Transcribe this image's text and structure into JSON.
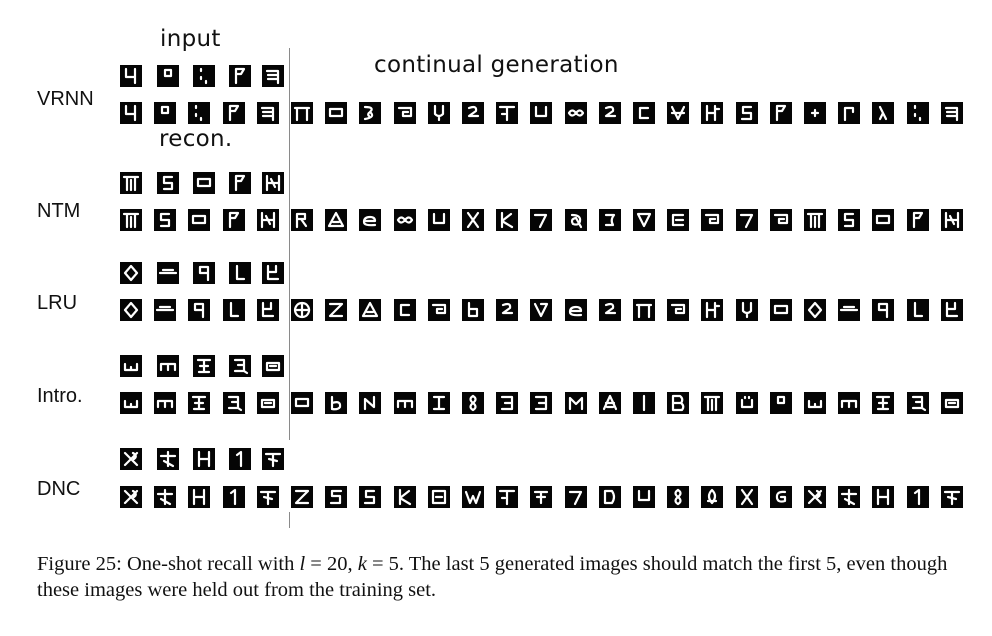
{
  "headers": {
    "input": "input",
    "recon": "recon.",
    "continual": "continual generation"
  },
  "rows": [
    {
      "label": "VRNN",
      "input": [
        "glyph-4",
        "glyph-o",
        "glyph-colon",
        "glyph-p-flag",
        "glyph-a-box"
      ],
      "output": [
        "glyph-4",
        "glyph-o",
        "glyph-colon",
        "glyph-p-flag",
        "glyph-a-box",
        "glyph-pi",
        "glyph-cup",
        "glyph-3-curl",
        "glyph-box-hook",
        "glyph-y",
        "glyph-hook-2",
        "glyph-t-bar",
        "glyph-u",
        "glyph-infinity",
        "glyph-hook-2",
        "glyph-c",
        "glyph-w-star",
        "glyph-h-tree",
        "glyph-s-flag",
        "glyph-p-flag",
        "glyph-star",
        "glyph-r",
        "glyph-lambda",
        "glyph-colon",
        "glyph-a-box"
      ]
    },
    {
      "label": "NTM",
      "input": [
        "glyph-pi-bar",
        "glyph-s-box",
        "glyph-cup",
        "glyph-p-flag",
        "glyph-x-tree"
      ],
      "output": [
        "glyph-pi-bar",
        "glyph-s-box",
        "glyph-cup",
        "glyph-p-flag",
        "glyph-x-tree",
        "glyph-r-box",
        "glyph-delta",
        "glyph-e-low",
        "glyph-infinity",
        "glyph-u",
        "glyph-x-tall",
        "glyph-k-curl",
        "glyph-7",
        "glyph-q-loop",
        "glyph-s-hook",
        "glyph-tri-box",
        "glyph-c-box",
        "glyph-box-hook",
        "glyph-7",
        "glyph-box-hook",
        "glyph-pi-bar",
        "glyph-s-box",
        "glyph-cup",
        "glyph-p-flag",
        "glyph-x-tree"
      ]
    },
    {
      "label": "LRU",
      "input": [
        "glyph-diamond",
        "glyph-dash",
        "glyph-9",
        "glyph-l",
        "glyph-e-box"
      ],
      "output": [
        "glyph-diamond",
        "glyph-dash",
        "glyph-9",
        "glyph-l",
        "glyph-e-box",
        "glyph-circle-cross",
        "glyph-z-box",
        "glyph-delta",
        "glyph-c",
        "glyph-box-hook",
        "glyph-b",
        "glyph-hook-2",
        "glyph-v-flag",
        "glyph-e-low",
        "glyph-hook-2",
        "glyph-pi",
        "glyph-box-hook",
        "glyph-h-tree",
        "glyph-y",
        "glyph-cup",
        "glyph-diamond",
        "glyph-dash",
        "glyph-9",
        "glyph-l",
        "glyph-e-box"
      ]
    },
    {
      "label": "Intro.",
      "input": [
        "glyph-u-low",
        "glyph-m-low",
        "glyph-t-pi",
        "glyph-3-tail",
        "glyph-o-flat"
      ],
      "output": [
        "glyph-u-low",
        "glyph-m-low",
        "glyph-t-pi",
        "glyph-3-tail",
        "glyph-o-flat",
        "glyph-cup",
        "glyph-b-round",
        "glyph-n-flag",
        "glyph-m-low",
        "glyph-i-bar",
        "glyph-8-tall",
        "glyph-3-bar",
        "glyph-3-bar",
        "glyph-m-flag",
        "glyph-a-stack",
        "glyph-i",
        "glyph-b-flag",
        "glyph-pi-bar",
        "glyph-u-dots",
        "glyph-o",
        "glyph-u-low",
        "glyph-m-low",
        "glyph-t-pi",
        "glyph-3-tail",
        "glyph-o-flat"
      ]
    },
    {
      "label": "DNC",
      "input": [
        "glyph-x-loop",
        "glyph-k-bar",
        "glyph-h",
        "glyph-1",
        "glyph-a-hook"
      ],
      "output": [
        "glyph-x-loop",
        "glyph-k-bar",
        "glyph-h",
        "glyph-1",
        "glyph-a-hook",
        "glyph-z-box",
        "glyph-5",
        "glyph-s-flag",
        "glyph-k-curl",
        "glyph-b-box",
        "glyph-w",
        "glyph-t-bar",
        "glyph-t-box",
        "glyph-7",
        "glyph-d-box",
        "glyph-u",
        "glyph-8-tall",
        "glyph-a-loop",
        "glyph-x-tall",
        "glyph-g-loop",
        "glyph-x-loop",
        "glyph-k-bar",
        "glyph-h",
        "glyph-1",
        "glyph-a-hook"
      ]
    }
  ],
  "caption": {
    "prefix": "Figure 25: One-shot recall with ",
    "var_l": "l",
    "mid": " = 20, ",
    "var_k": "k",
    "suffix": " = 5. The last 5 generated images should match the first 5, even though these images were held out from the training set."
  }
}
